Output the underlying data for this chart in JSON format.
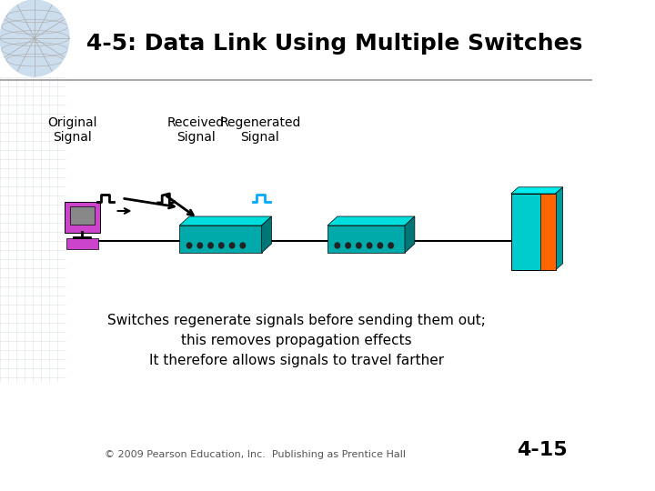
{
  "title": "4-5: Data Link Using Multiple Switches",
  "bg_color": "#ffffff",
  "title_color": "#000000",
  "title_fontsize": 18,
  "header_line_color": "#aaaaaa",
  "label_original": "Original\nSignal",
  "label_received": "Received\nSignal",
  "label_regenerated": "Regenerated\nSignal",
  "body_text_line1": "Switches regenerate signals before sending them out;",
  "body_text_line2": "this removes propagation effects",
  "body_text_line3": "It therefore allows signals to travel farther",
  "footer_text": "© 2009 Pearson Education, Inc.  Publishing as Prentice Hall",
  "slide_number": "4-15",
  "switch_color_top": "#00cccc",
  "switch_color_side": "#009999",
  "switch_color_front": "#00aaaa",
  "switch_dot_color": "#333333",
  "computer_color": "#cc44cc",
  "server_color_front": "#00cccc",
  "server_color_side": "#ff6600",
  "line_color": "#000000",
  "signal_orig_color": "#000000",
  "signal_regen_color": "#00aaff",
  "arrow_color": "#000000"
}
